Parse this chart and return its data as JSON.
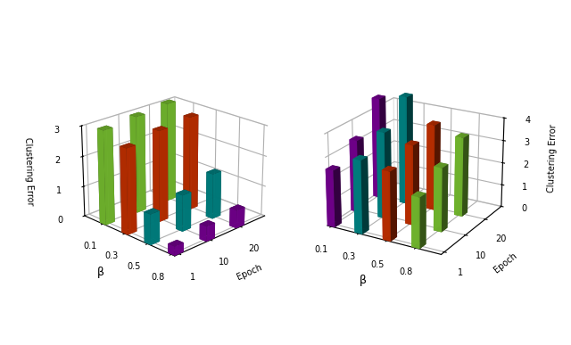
{
  "left": {
    "ylabel": "Clustering Error",
    "xlabel_beta": "β",
    "xlabel_epoch": "Epoch",
    "beta_ticks": [
      0.8,
      0.5,
      0.3,
      0.1
    ],
    "epoch_ticks": [
      1,
      10,
      20
    ],
    "zlim": [
      0,
      3
    ],
    "zticks": [
      0,
      1,
      2,
      3
    ],
    "colors": [
      "#7b0099",
      "#008b8b",
      "#cc3200",
      "#7dc832"
    ],
    "data": {
      "beta=0.8": [
        0.3,
        0.5,
        0.6
      ],
      "beta=0.5": [
        1.0,
        1.2,
        1.5
      ],
      "beta=0.3": [
        2.8,
        3.0,
        3.1
      ],
      "beta=0.1": [
        3.1,
        3.2,
        3.3
      ]
    }
  },
  "right": {
    "ylabel": "Clustering Error",
    "xlabel_beta": "β",
    "xlabel_epoch": "Epoch",
    "beta_ticks": [
      0.1,
      0.3,
      0.5,
      0.8
    ],
    "epoch_ticks": [
      1,
      10,
      20
    ],
    "zlim": [
      0,
      4
    ],
    "zticks": [
      0,
      1,
      2,
      3,
      4
    ],
    "colors": [
      "#7b0099",
      "#008b8b",
      "#cc3200",
      "#7dc832"
    ],
    "data": {
      "beta=0.1": [
        2.5,
        3.2,
        4.5
      ],
      "beta=0.3": [
        3.2,
        3.8,
        4.8
      ],
      "beta=0.5": [
        3.0,
        3.5,
        3.8
      ],
      "beta=0.8": [
        2.2,
        2.8,
        3.5
      ]
    }
  }
}
